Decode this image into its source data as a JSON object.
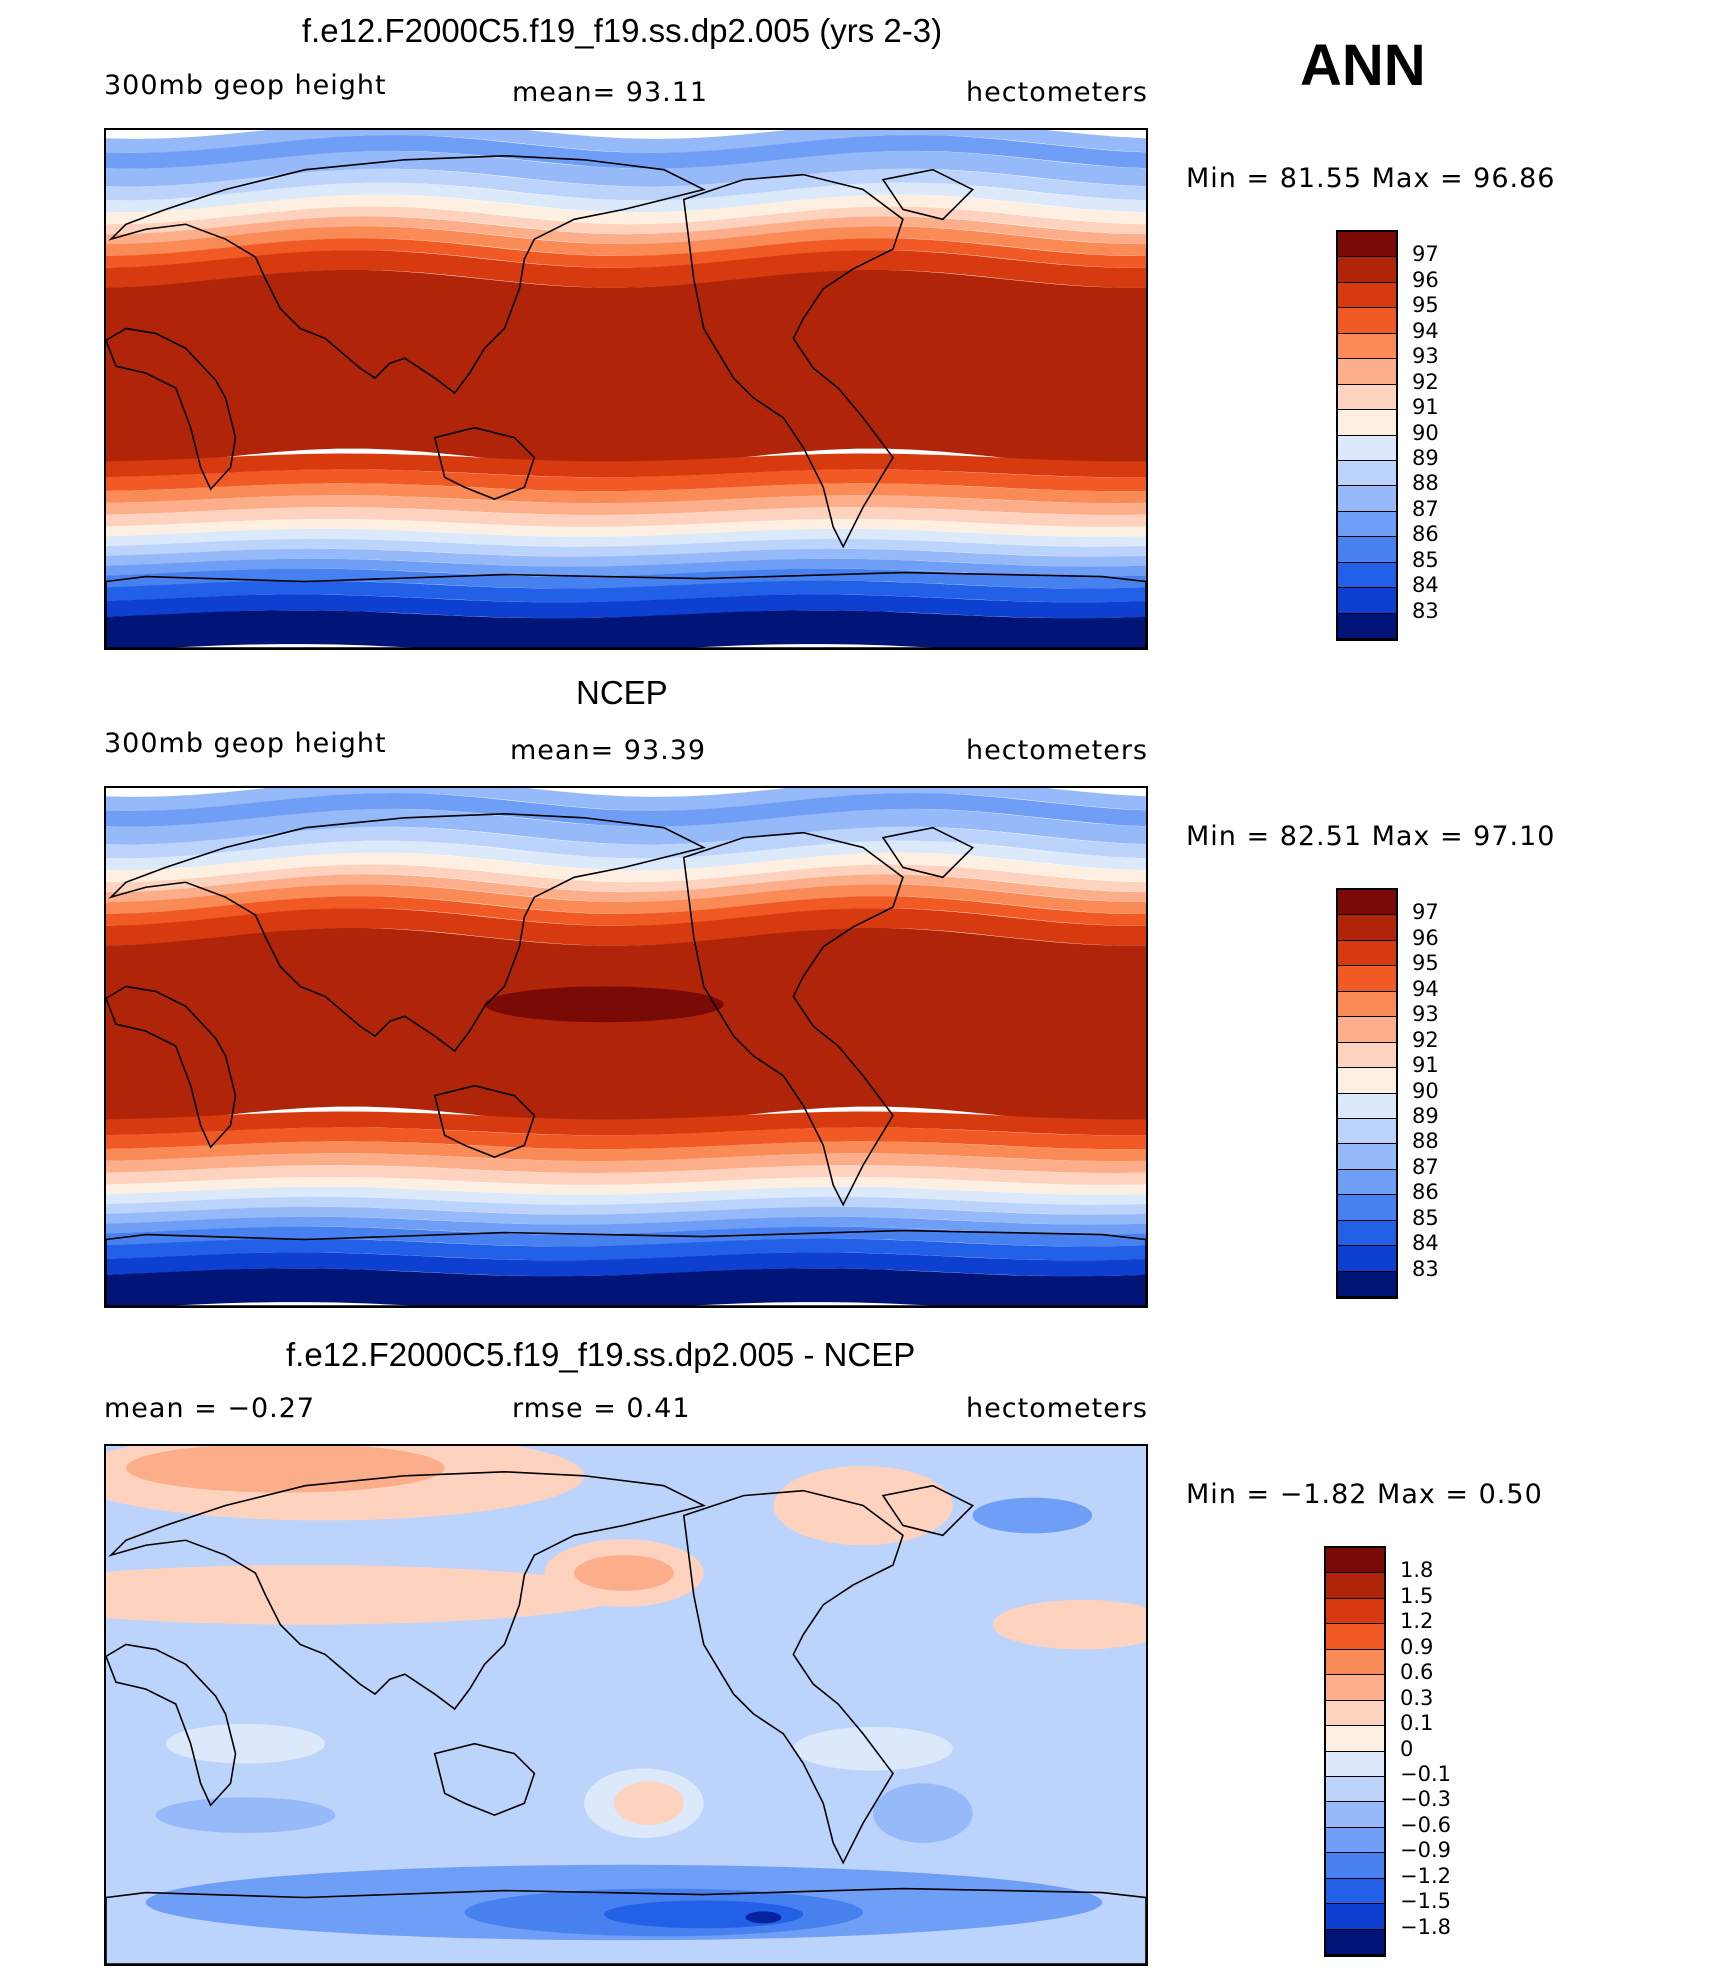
{
  "season": "ANN",
  "panels": [
    {
      "id": "model",
      "title": "f.e12.F2000C5.f19_f19.ss.dp2.005 (yrs 2-3)",
      "left_label": "300mb  geop  height",
      "center_label": "mean=   93.11",
      "right_label": "hectometers",
      "minmax": "Min  =    81.55  Max  =    96.86",
      "kind": "field",
      "colorbar_labels": [
        "97",
        "96",
        "95",
        "94",
        "93",
        "92",
        "91",
        "90",
        "89",
        "88",
        "87",
        "86",
        "85",
        "84",
        "83"
      ]
    },
    {
      "id": "obs",
      "title": "NCEP",
      "left_label": "300mb  geop  height",
      "center_label": "mean=   93.39",
      "right_label": "hectometers",
      "minmax": "Min  =    82.51  Max  =    97.10",
      "kind": "field",
      "colorbar_labels": [
        "97",
        "96",
        "95",
        "94",
        "93",
        "92",
        "91",
        "90",
        "89",
        "88",
        "87",
        "86",
        "85",
        "84",
        "83"
      ]
    },
    {
      "id": "diff",
      "title": "f.e12.F2000C5.f19_f19.ss.dp2.005 - NCEP",
      "left_label": "mean  =    −0.27",
      "center_label": "rmse  =     0.41",
      "right_label": "hectometers",
      "minmax": "Min  =   −1.82  Max  =     0.50",
      "kind": "diff",
      "colorbar_labels": [
        "1.8",
        "1.5",
        "1.2",
        "0.9",
        "0.6",
        "0.3",
        "0.1",
        "0",
        "−0.1",
        "−0.3",
        "−0.6",
        "−0.9",
        "−1.2",
        "−1.5",
        "−1.8"
      ]
    }
  ],
  "colors": {
    "palette": [
      "#7a0a06",
      "#b0240a",
      "#d83a10",
      "#f25a25",
      "#fa8a56",
      "#fcae8b",
      "#fdd3bf",
      "#fdf0e2",
      "#dbe9fb",
      "#bcd3fb",
      "#95b9f9",
      "#6e9ef5",
      "#4781f0",
      "#2260e8",
      "#0d3fd0",
      "#05239c",
      "#011578"
    ]
  }
}
